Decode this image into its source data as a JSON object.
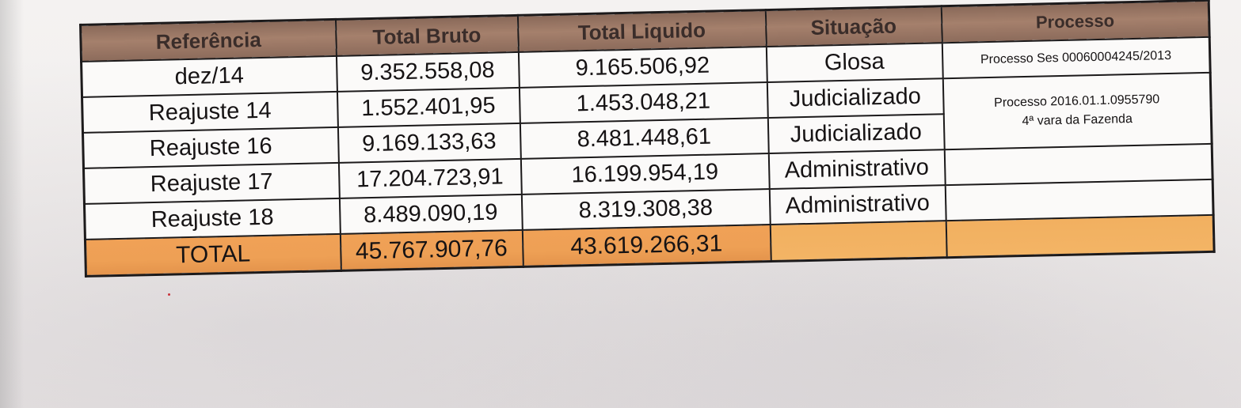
{
  "table": {
    "headers": [
      "Referência",
      "Total Bruto",
      "Total Liquido",
      "Situação",
      "Processo"
    ],
    "rows": [
      {
        "referencia": "dez/14",
        "total_bruto": "9.352.558,08",
        "total_liquido": "9.165.506,92",
        "situacao": "Glosa",
        "processo": "Processo Ses 00060004245/2013"
      },
      {
        "referencia": "Reajuste 14",
        "total_bruto": "1.552.401,95",
        "total_liquido": "1.453.048,21",
        "situacao": "Judicializado",
        "processo_line1": "Processo 2016.01.1.0955790",
        "processo_line2": "4ª vara da Fazenda"
      },
      {
        "referencia": "Reajuste 16",
        "total_bruto": "9.169.133,63",
        "total_liquido": "8.481.448,61",
        "situacao": "Judicializado"
      },
      {
        "referencia": "Reajuste 17",
        "total_bruto": "17.204.723,91",
        "total_liquido": "16.199.954,19",
        "situacao": "Administrativo",
        "processo": ""
      },
      {
        "referencia": "Reajuste 18",
        "total_bruto": "8.489.090,19",
        "total_liquido": "8.319.308,38",
        "situacao": "Administrativo",
        "processo": ""
      }
    ],
    "total": {
      "label": "TOTAL",
      "total_bruto": "45.767.907,76",
      "total_liquido": "43.619.266,31",
      "situacao": "",
      "processo": ""
    }
  },
  "colors": {
    "header_fill": "#a5806c",
    "total_fill": "#f0a156",
    "border": "#1c1a1b"
  }
}
